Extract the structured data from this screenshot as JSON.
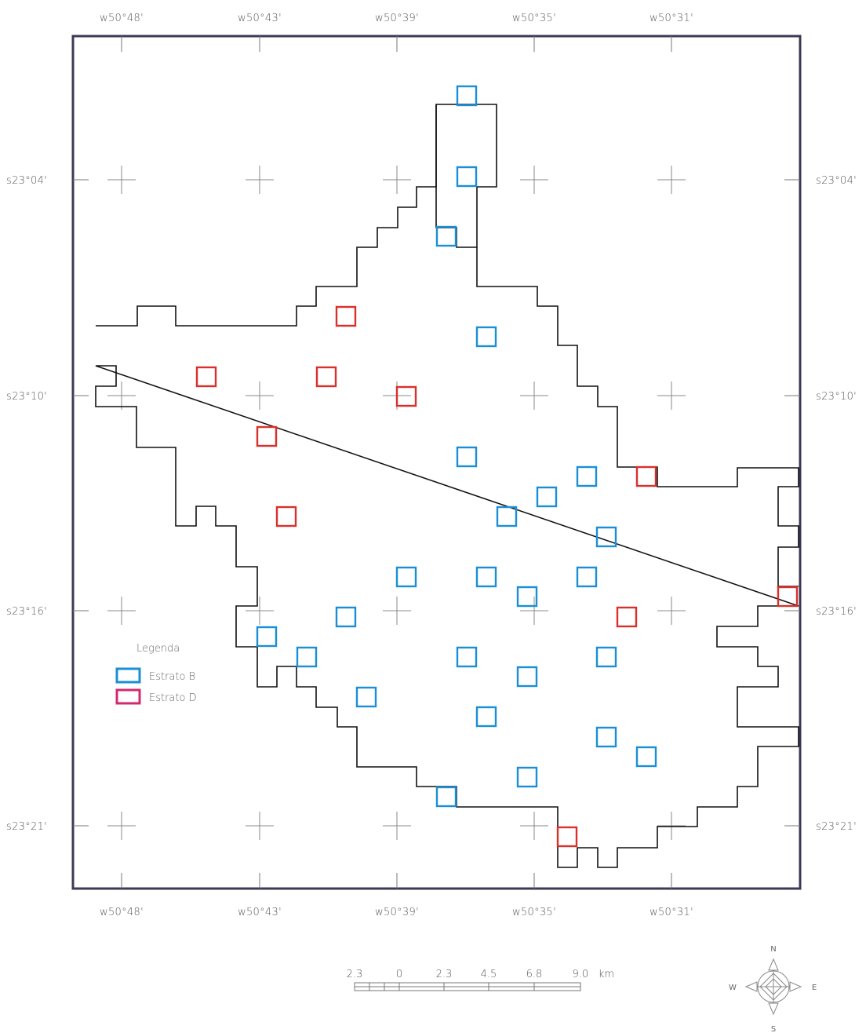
{
  "map": {
    "top_lon_labels": [
      "w50°48'",
      "w50°43'",
      "w50°39'",
      "w50°35'",
      "w50°31'"
    ],
    "bottom_lon_labels": [
      "w50°48'",
      "w50°43'",
      "w50°39'",
      "w50°35'",
      "w50°31'"
    ],
    "left_lat_labels": [
      "s23°04'",
      "s23°10'",
      "s23°16'",
      "s23°21'"
    ],
    "right_lat_labels": [
      "s23°04'",
      "s23°10'",
      "s23°16'",
      "s23°21'"
    ]
  },
  "legend": {
    "title": "Legenda",
    "items": [
      {
        "label": "Estrato B",
        "color": "#1a8fd6"
      },
      {
        "label": "Estrato D",
        "color": "#d4286e"
      }
    ]
  },
  "scale_bar": {
    "labels": [
      "2.3",
      "0",
      "2.3",
      "4.5",
      "6.8",
      "9.0",
      "km"
    ]
  },
  "compass": {
    "n": "N",
    "s": "S",
    "e": "E",
    "w": "W"
  },
  "colors": {
    "estrato_b": "#1a8fd6",
    "estrato_d_square": "#d9302c",
    "estrato_d_legend": "#d4286e",
    "frame": "#3c3a55",
    "boundary": "#111111"
  }
}
